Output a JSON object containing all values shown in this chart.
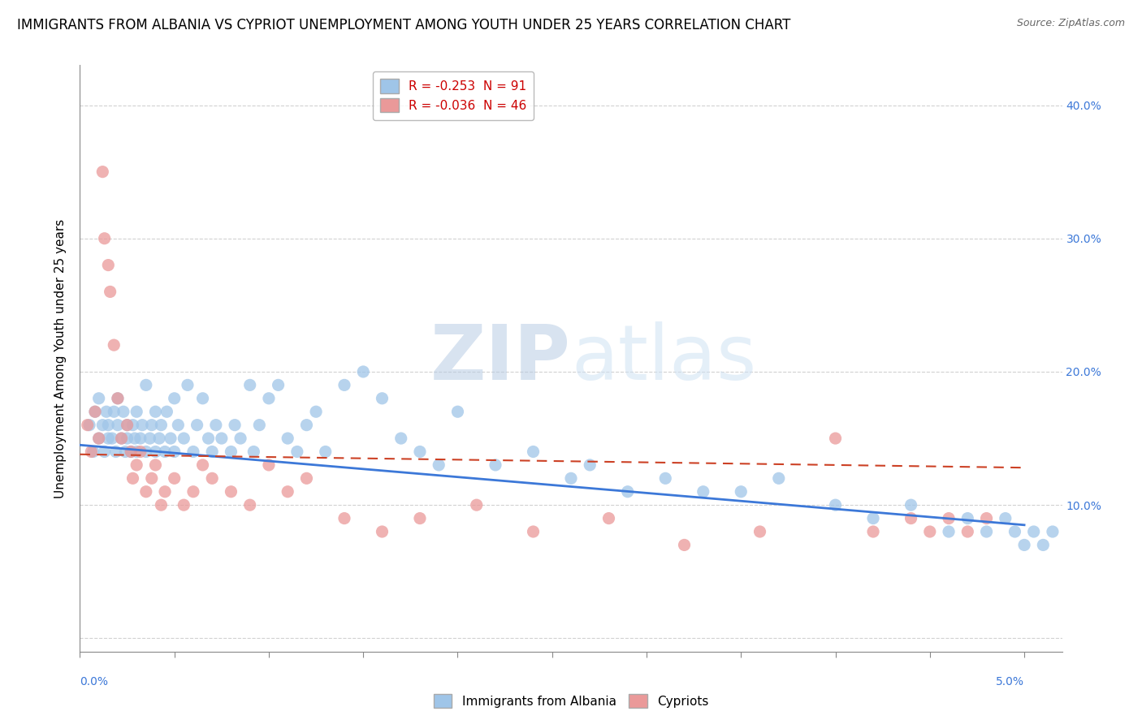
{
  "title": "IMMIGRANTS FROM ALBANIA VS CYPRIOT UNEMPLOYMENT AMONG YOUTH UNDER 25 YEARS CORRELATION CHART",
  "source": "Source: ZipAtlas.com",
  "ylabel": "Unemployment Among Youth under 25 years",
  "xlim": [
    0.0,
    5.2
  ],
  "ylim": [
    -1.0,
    43.0
  ],
  "yticks_right": [
    10.0,
    20.0,
    30.0,
    40.0
  ],
  "ytick_labels_right": [
    "10.0%",
    "20.0%",
    "30.0%",
    "40.0%"
  ],
  "legend_blue_r": "-0.253",
  "legend_blue_n": "91",
  "legend_pink_r": "-0.036",
  "legend_pink_n": "46",
  "legend_label_blue": "Immigrants from Albania",
  "legend_label_pink": "Cypriots",
  "blue_color": "#9fc5e8",
  "pink_color": "#ea9999",
  "trendline_blue": "#3c78d8",
  "trendline_pink": "#cc4125",
  "watermark": "ZIPatlas",
  "background_color": "#ffffff",
  "grid_color": "#cccccc",
  "title_fontsize": 12,
  "axis_label_fontsize": 11,
  "tick_fontsize": 10,
  "legend_fontsize": 11,
  "blue_x": [
    0.05,
    0.07,
    0.08,
    0.1,
    0.1,
    0.12,
    0.13,
    0.14,
    0.15,
    0.15,
    0.17,
    0.18,
    0.19,
    0.2,
    0.2,
    0.22,
    0.23,
    0.24,
    0.25,
    0.25,
    0.27,
    0.28,
    0.29,
    0.3,
    0.3,
    0.32,
    0.33,
    0.35,
    0.35,
    0.37,
    0.38,
    0.4,
    0.4,
    0.42,
    0.43,
    0.45,
    0.46,
    0.48,
    0.5,
    0.5,
    0.52,
    0.55,
    0.57,
    0.6,
    0.62,
    0.65,
    0.68,
    0.7,
    0.72,
    0.75,
    0.8,
    0.82,
    0.85,
    0.9,
    0.92,
    0.95,
    1.0,
    1.05,
    1.1,
    1.15,
    1.2,
    1.25,
    1.3,
    1.4,
    1.5,
    1.6,
    1.7,
    1.8,
    1.9,
    2.0,
    2.2,
    2.4,
    2.6,
    2.7,
    2.9,
    3.1,
    3.3,
    3.5,
    3.7,
    4.0,
    4.2,
    4.4,
    4.6,
    4.7,
    4.8,
    4.9,
    4.95,
    5.0,
    5.05,
    5.1,
    5.15
  ],
  "blue_y": [
    16.0,
    14.0,
    17.0,
    15.0,
    18.0,
    16.0,
    14.0,
    17.0,
    15.0,
    16.0,
    15.0,
    17.0,
    14.0,
    16.0,
    18.0,
    15.0,
    17.0,
    14.0,
    15.0,
    16.0,
    14.0,
    16.0,
    15.0,
    14.0,
    17.0,
    15.0,
    16.0,
    19.0,
    14.0,
    15.0,
    16.0,
    14.0,
    17.0,
    15.0,
    16.0,
    14.0,
    17.0,
    15.0,
    18.0,
    14.0,
    16.0,
    15.0,
    19.0,
    14.0,
    16.0,
    18.0,
    15.0,
    14.0,
    16.0,
    15.0,
    14.0,
    16.0,
    15.0,
    19.0,
    14.0,
    16.0,
    18.0,
    19.0,
    15.0,
    14.0,
    16.0,
    17.0,
    14.0,
    19.0,
    20.0,
    18.0,
    15.0,
    14.0,
    13.0,
    17.0,
    13.0,
    14.0,
    12.0,
    13.0,
    11.0,
    12.0,
    11.0,
    11.0,
    12.0,
    10.0,
    9.0,
    10.0,
    8.0,
    9.0,
    8.0,
    9.0,
    8.0,
    7.0,
    8.0,
    7.0,
    8.0
  ],
  "pink_x": [
    0.04,
    0.06,
    0.08,
    0.1,
    0.12,
    0.13,
    0.15,
    0.16,
    0.18,
    0.2,
    0.22,
    0.25,
    0.27,
    0.28,
    0.3,
    0.32,
    0.35,
    0.38,
    0.4,
    0.43,
    0.45,
    0.5,
    0.55,
    0.6,
    0.65,
    0.7,
    0.8,
    0.9,
    1.0,
    1.1,
    1.2,
    1.4,
    1.6,
    1.8,
    2.1,
    2.4,
    2.8,
    3.2,
    3.6,
    4.0,
    4.2,
    4.4,
    4.5,
    4.6,
    4.7,
    4.8
  ],
  "pink_y": [
    16.0,
    14.0,
    17.0,
    15.0,
    35.0,
    30.0,
    28.0,
    26.0,
    22.0,
    18.0,
    15.0,
    16.0,
    14.0,
    12.0,
    13.0,
    14.0,
    11.0,
    12.0,
    13.0,
    10.0,
    11.0,
    12.0,
    10.0,
    11.0,
    13.0,
    12.0,
    11.0,
    10.0,
    13.0,
    11.0,
    12.0,
    9.0,
    8.0,
    9.0,
    10.0,
    8.0,
    9.0,
    7.0,
    8.0,
    15.0,
    8.0,
    9.0,
    8.0,
    9.0,
    8.0,
    9.0
  ]
}
